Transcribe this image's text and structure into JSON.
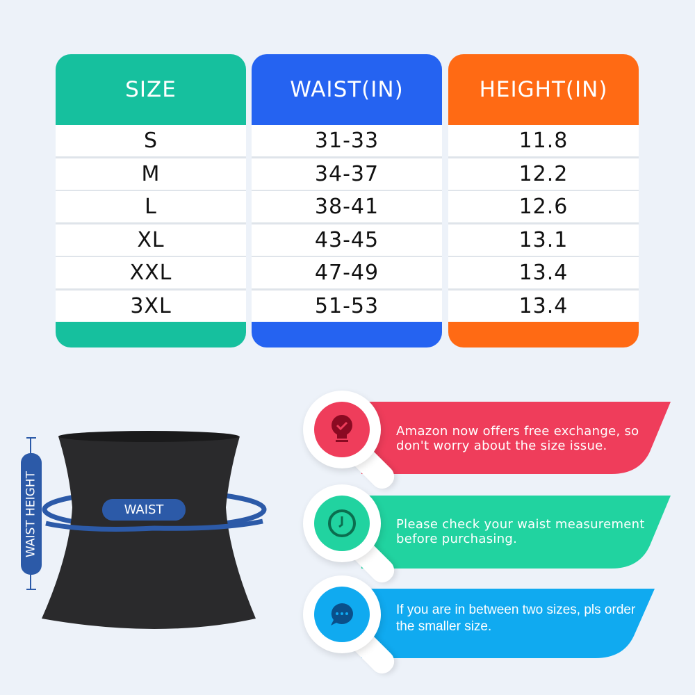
{
  "colors": {
    "size": "#16c09e",
    "waist": "#2563f1",
    "height": "#ff6a14",
    "tip1": "#ef3d5b",
    "tip2": "#21d3a0",
    "tip3": "#10aaf0",
    "measure": "#2c5aa8",
    "background": "#edf2f9"
  },
  "table": {
    "headers": [
      "SIZE",
      "WAIST(IN)",
      "HEIGHT(IN)"
    ],
    "rows": [
      [
        "S",
        "31-33",
        "11.8"
      ],
      [
        "M",
        "34-37",
        "12.2"
      ],
      [
        "L",
        "38-41",
        "12.6"
      ],
      [
        "XL",
        "43-45",
        "13.1"
      ],
      [
        "XXL",
        "47-49",
        "13.4"
      ],
      [
        "3XL",
        "51-53",
        "13.4"
      ]
    ]
  },
  "diagram": {
    "waist_label": "WAIST",
    "height_label": "WAIST HEIGHT"
  },
  "tips": [
    {
      "icon": "lightbulb-check-icon",
      "text": "Amazon now offers free exchange, so don't worry about the size issue."
    },
    {
      "icon": "clock-icon",
      "text": "Please check your waist measurement before purchasing."
    },
    {
      "icon": "chat-bubble-icon",
      "text": "If you are in between two sizes, pls order the smaller size."
    }
  ]
}
